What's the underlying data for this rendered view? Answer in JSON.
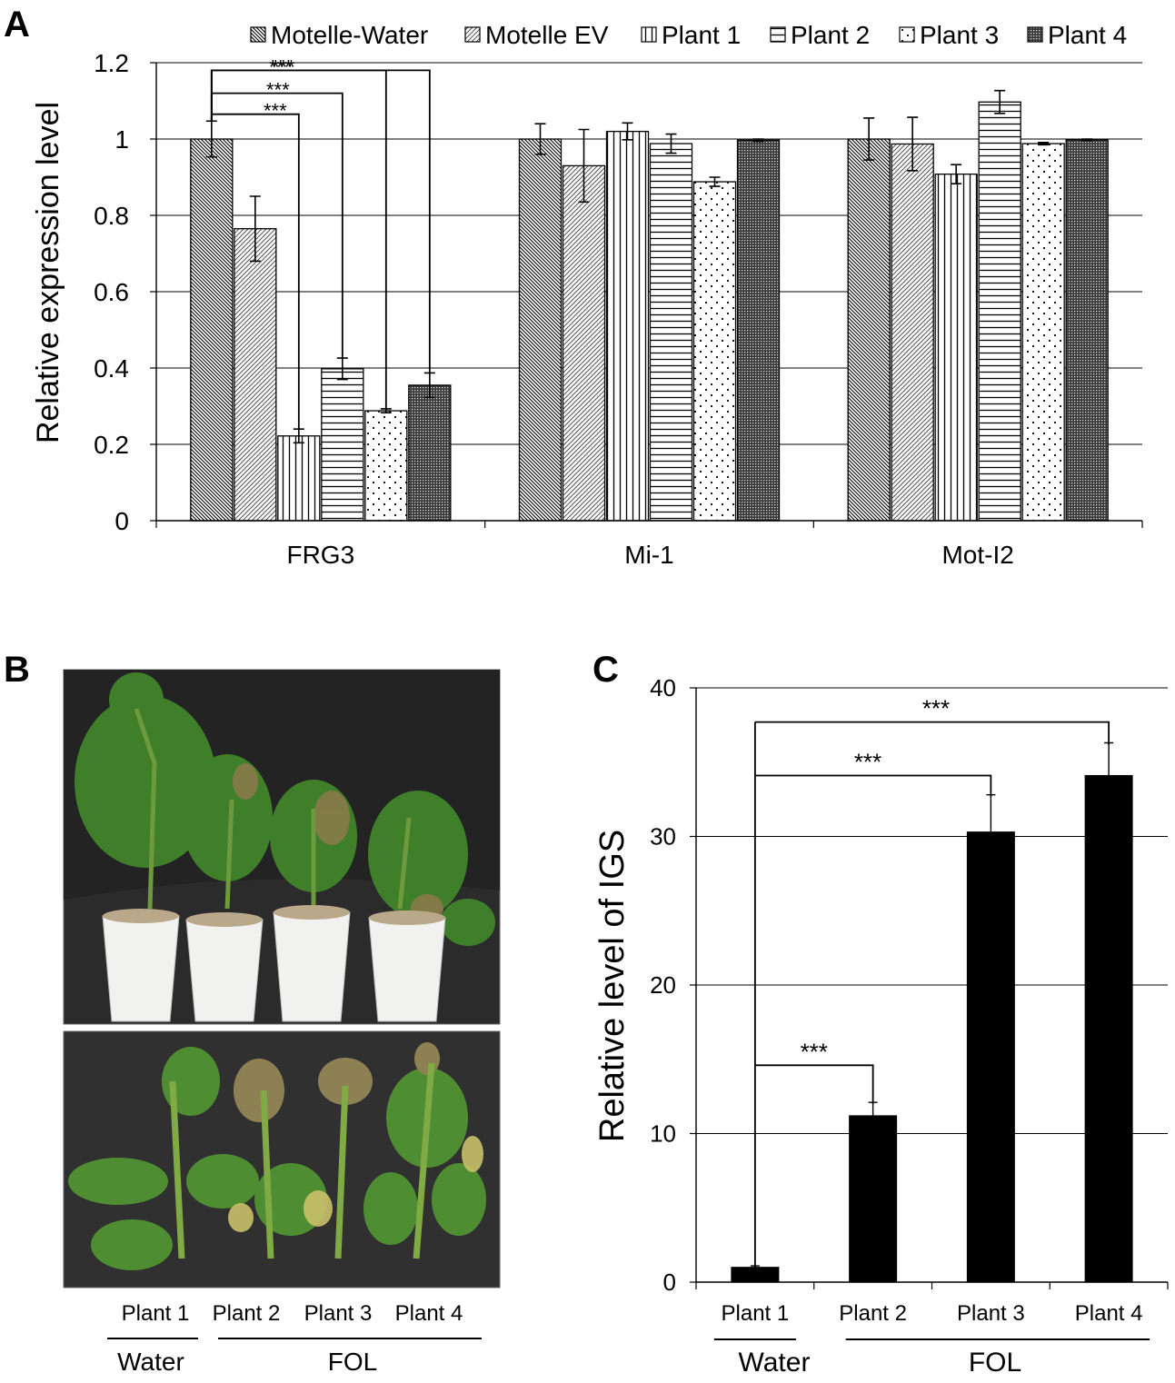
{
  "panels": {
    "a": {
      "letter": "A"
    },
    "b": {
      "letter": "B",
      "photo_labels": [
        "Plant 1",
        "Plant 2",
        "Plant 3",
        "Plant 4"
      ],
      "group_labels": {
        "water": "Water",
        "fol": "FOL"
      }
    },
    "c": {
      "letter": "C"
    }
  },
  "chart_data": [
    {
      "type": "bar",
      "panel": "A",
      "title": "",
      "xlabel": "",
      "ylabel": "Relative expression level",
      "ylim": [
        0,
        1.2
      ],
      "yticks": [
        "0",
        "0.2",
        "0.4",
        "0.6",
        "0.8",
        "1",
        "1.2"
      ],
      "grid": "horizontal",
      "legend_position": "top",
      "categories": [
        "FRG3",
        "Mi-1",
        "Mot-I2"
      ],
      "series": [
        {
          "name": "Motelle-Water",
          "pattern": "back-diagonal-dense",
          "values": [
            1.0,
            1.0,
            1.0
          ],
          "errors": [
            0.047,
            0.04,
            0.055
          ]
        },
        {
          "name": "Motelle EV",
          "pattern": "diagonal-light",
          "values": [
            0.765,
            0.93,
            0.987
          ],
          "errors": [
            0.085,
            0.095,
            0.07
          ]
        },
        {
          "name": "Plant 1",
          "pattern": "vertical-lines",
          "values": [
            0.222,
            1.02,
            0.908
          ],
          "errors": [
            0.018,
            0.022,
            0.025
          ]
        },
        {
          "name": "Plant 2",
          "pattern": "horizontal-lines",
          "values": [
            0.398,
            0.988,
            1.097
          ],
          "errors": [
            0.028,
            0.025,
            0.03
          ]
        },
        {
          "name": "Plant 3",
          "pattern": "dots",
          "values": [
            0.288,
            0.888,
            0.988
          ],
          "errors": [
            0.005,
            0.012,
            0.003
          ]
        },
        {
          "name": "Plant 4",
          "pattern": "dense-grid",
          "values": [
            0.355,
            0.997,
            0.998
          ],
          "errors": [
            0.032,
            0.003,
            0.002
          ]
        }
      ],
      "significance": {
        "marker": "***",
        "from_series": 0,
        "category": 0,
        "to_series": [
          2,
          3,
          4,
          5
        ]
      }
    },
    {
      "type": "bar",
      "panel": "C",
      "title": "",
      "xlabel": "",
      "ylabel": "Relative level of IGS",
      "ylim": [
        0,
        40
      ],
      "yticks": [
        "0",
        "10",
        "20",
        "30",
        "40"
      ],
      "grid": "horizontal",
      "categories": [
        "Plant 1",
        "Plant 2",
        "Plant 3",
        "Plant 4"
      ],
      "values": [
        1.0,
        11.2,
        30.3,
        34.1
      ],
      "errors": [
        0.1,
        0.9,
        2.5,
        2.2
      ],
      "color": "#000000",
      "groups": [
        {
          "label": "Water",
          "categories": [
            0
          ]
        },
        {
          "label": "FOL",
          "categories": [
            1,
            2,
            3
          ]
        }
      ],
      "significance": {
        "marker": "***",
        "from": 0,
        "to": [
          1,
          2,
          3
        ]
      }
    }
  ]
}
